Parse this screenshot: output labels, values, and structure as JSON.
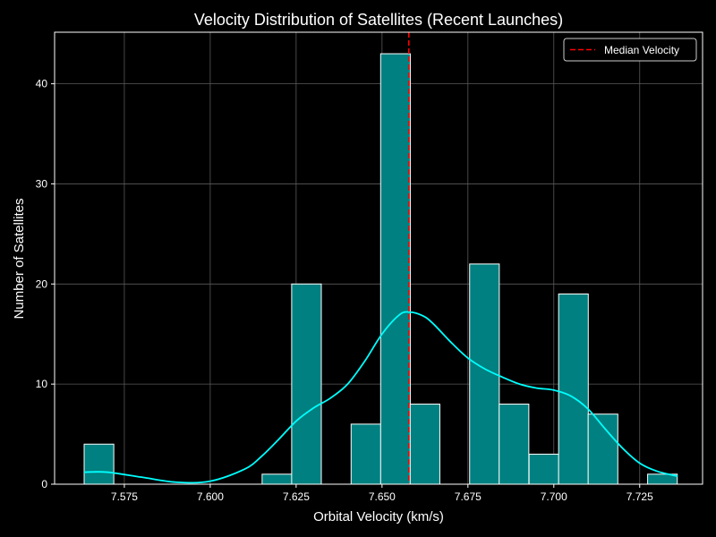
{
  "chart_data": {
    "type": "bar",
    "title": "Velocity Distribution of Satellites (Recent Launches)",
    "xlabel": "Orbital Velocity (km/s)",
    "ylabel": "Number of Satellites",
    "xlim": [
      7.5547,
      7.7433
    ],
    "ylim": [
      0,
      45.15
    ],
    "xticks": [
      7.575,
      7.6,
      7.625,
      7.65,
      7.675,
      7.7,
      7.725
    ],
    "yticks": [
      0,
      10,
      20,
      30,
      40
    ],
    "grid": true,
    "legend_position": "top-right",
    "bin_width": 0.00863,
    "bins": [
      {
        "start": 7.5633,
        "count": 4
      },
      {
        "start": 7.6151,
        "count": 1
      },
      {
        "start": 7.6237,
        "count": 20
      },
      {
        "start": 7.641,
        "count": 6
      },
      {
        "start": 7.6496,
        "count": 43
      },
      {
        "start": 7.6582,
        "count": 8
      },
      {
        "start": 7.6755,
        "count": 22
      },
      {
        "start": 7.6841,
        "count": 8
      },
      {
        "start": 7.6928,
        "count": 3
      },
      {
        "start": 7.7014,
        "count": 19
      },
      {
        "start": 7.71,
        "count": 7
      },
      {
        "start": 7.7273,
        "count": 1
      }
    ],
    "kde": {
      "x": [
        7.5633,
        7.57,
        7.58,
        7.59,
        7.6,
        7.61,
        7.615,
        7.62,
        7.625,
        7.63,
        7.635,
        7.64,
        7.645,
        7.65,
        7.655,
        7.658,
        7.662,
        7.665,
        7.67,
        7.675,
        7.68,
        7.685,
        7.69,
        7.695,
        7.7,
        7.705,
        7.71,
        7.715,
        7.72,
        7.725,
        7.73,
        7.736
      ],
      "y": [
        1.2,
        1.2,
        0.7,
        0.2,
        0.3,
        1.5,
        2.8,
        4.5,
        6.3,
        7.6,
        8.6,
        10.0,
        12.3,
        15.0,
        16.9,
        17.2,
        16.8,
        16.0,
        14.2,
        12.6,
        11.5,
        10.7,
        10.0,
        9.6,
        9.4,
        8.8,
        7.5,
        5.5,
        3.6,
        2.1,
        1.3,
        0.8
      ]
    },
    "median": 7.6578,
    "legend": [
      {
        "label": "Median Velocity",
        "style": "dashed",
        "color": "#ff0000"
      }
    ],
    "colors": {
      "background": "#000000",
      "bar_fill": "#008080",
      "bar_edge": "#ffffff",
      "kde_line": "#00ffff",
      "median_line": "#ff0000",
      "grid": "#5a5a5a",
      "text": "#ffffff",
      "legend_bg": "#000000",
      "legend_edge": "#cccccc"
    }
  }
}
